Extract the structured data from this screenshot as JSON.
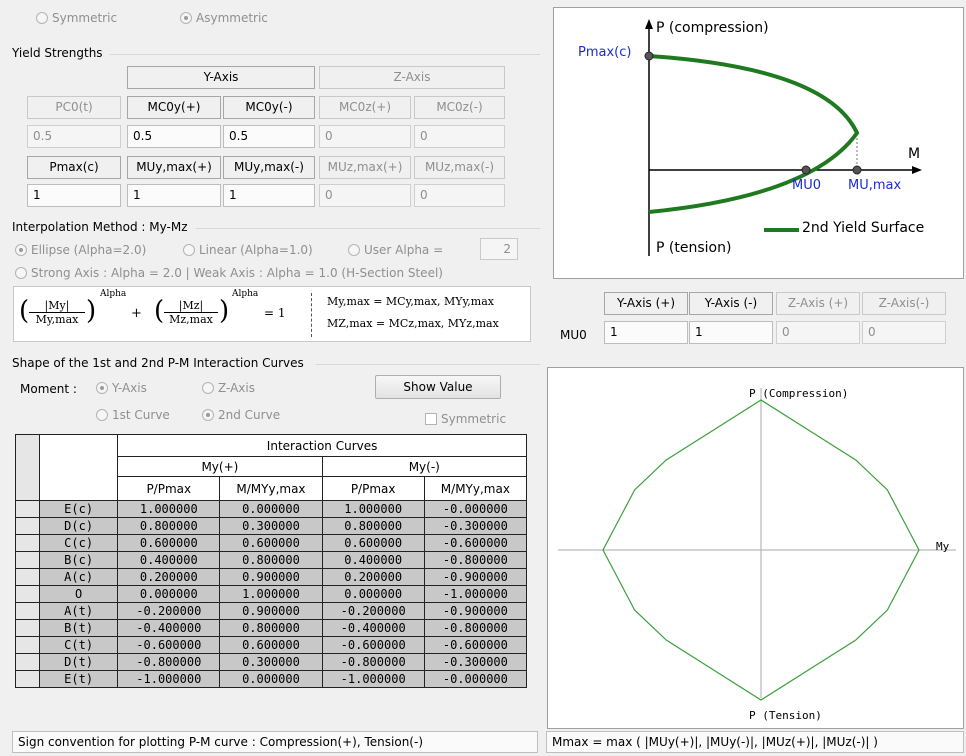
{
  "top": {
    "symmetric": "Symmetric",
    "asymmetric": "Asymmetric"
  },
  "yield": {
    "title": "Yield Strengths",
    "y_axis": "Y-Axis",
    "z_axis": "Z-Axis",
    "row1_headers": [
      "PC0(t)",
      "MC0y(+)",
      "MC0y(-)",
      "MC0z(+)",
      "MC0z(-)"
    ],
    "row1_values": [
      "0.5",
      "0.5",
      "0.5",
      "0",
      "0"
    ],
    "row2_headers": [
      "Pmax(c)",
      "MUy,max(+)",
      "MUy,max(-)",
      "MUz,max(+)",
      "MUz,max(-)"
    ],
    "row2_values": [
      "1",
      "1",
      "1",
      "0",
      "0"
    ]
  },
  "interp": {
    "title": "Interpolation Method : My-Mz",
    "ellipse": "Ellipse (Alpha=2.0)",
    "linear": "Linear (Alpha=1.0)",
    "user": "User Alpha =",
    "user_value": "2",
    "strong": "Strong Axis : Alpha = 2.0 | Weak Axis : Alpha = 1.0 (H-Section Steel)",
    "eq_my": "|My|",
    "eq_mymax": "My,max",
    "eq_mz": "|Mz|",
    "eq_mzmax": "Mz,max",
    "eq_alpha": "Alpha",
    "eq_plus": "+",
    "eq_equals": "= 1",
    "eq_def1": "My,max = MCy,max,  MYy,max",
    "eq_def2": "MZ,max = MCz,max,  MYz,max"
  },
  "diagram": {
    "p_comp": "P (compression)",
    "pmax": "Pmax(c)",
    "m": "M",
    "mu0": "MU0",
    "mumax": "MU,max",
    "legend": "2nd Yield Surface",
    "p_tension": "P (tension)",
    "color_curve": "#1f7a1f",
    "color_label": "#1d2bd6"
  },
  "mu0": {
    "row_label": "MU0",
    "headers": [
      "Y-Axis (+)",
      "Y-Axis (-)",
      "Z-Axis (+)",
      "Z-Axis(-)"
    ],
    "values": [
      "1",
      "1",
      "0",
      "0"
    ]
  },
  "shape": {
    "title": "Shape of the 1st and 2nd P-M Interaction Curves",
    "moment": "Moment :",
    "y_axis": "Y-Axis",
    "z_axis": "Z-Axis",
    "first_curve": "1st Curve",
    "second_curve": "2nd Curve",
    "show_value": "Show Value",
    "symmetric": "Symmetric"
  },
  "table": {
    "group_header": "Interaction Curves",
    "my_plus": "My(+)",
    "my_minus": "My(-)",
    "col_headers": [
      "P/Pmax",
      "M/MYy,max",
      "P/Pmax",
      "M/MYy,max"
    ],
    "rows": [
      {
        "label": "E(c)",
        "cells": [
          "1.000000",
          "0.000000",
          "1.000000",
          "-0.000000"
        ]
      },
      {
        "label": "D(c)",
        "cells": [
          "0.800000",
          "0.300000",
          "0.800000",
          "-0.300000"
        ]
      },
      {
        "label": "C(c)",
        "cells": [
          "0.600000",
          "0.600000",
          "0.600000",
          "-0.600000"
        ]
      },
      {
        "label": "B(c)",
        "cells": [
          "0.400000",
          "0.800000",
          "0.400000",
          "-0.800000"
        ]
      },
      {
        "label": "A(c)",
        "cells": [
          "0.200000",
          "0.900000",
          "0.200000",
          "-0.900000"
        ]
      },
      {
        "label": "O",
        "cells": [
          "0.000000",
          "1.000000",
          "0.000000",
          "-1.000000"
        ]
      },
      {
        "label": "A(t)",
        "cells": [
          "-0.200000",
          "0.900000",
          "-0.200000",
          "-0.900000"
        ]
      },
      {
        "label": "B(t)",
        "cells": [
          "-0.400000",
          "0.800000",
          "-0.400000",
          "-0.800000"
        ]
      },
      {
        "label": "C(t)",
        "cells": [
          "-0.600000",
          "0.600000",
          "-0.600000",
          "-0.600000"
        ]
      },
      {
        "label": "D(t)",
        "cells": [
          "-0.800000",
          "0.300000",
          "-0.800000",
          "-0.300000"
        ]
      },
      {
        "label": "E(t)",
        "cells": [
          "-1.000000",
          "0.000000",
          "-1.000000",
          "-0.000000"
        ]
      }
    ]
  },
  "plot": {
    "p_comp": "P (Compression)",
    "p_tension": "P (Tension)",
    "my": "My",
    "curve_color": "#3aa03a",
    "points": [
      {
        "p": 1.0,
        "m": 0.0
      },
      {
        "p": 0.8,
        "m": 0.3
      },
      {
        "p": 0.6,
        "m": 0.6
      },
      {
        "p": 0.4,
        "m": 0.8
      },
      {
        "p": 0.2,
        "m": 0.9
      },
      {
        "p": 0.0,
        "m": 1.0
      },
      {
        "p": -0.2,
        "m": 0.9
      },
      {
        "p": -0.4,
        "m": 0.8
      },
      {
        "p": -0.6,
        "m": 0.6
      },
      {
        "p": -0.8,
        "m": 0.3
      },
      {
        "p": -1.0,
        "m": 0.0
      },
      {
        "p": -0.8,
        "m": -0.3
      },
      {
        "p": -0.6,
        "m": -0.6
      },
      {
        "p": -0.4,
        "m": -0.8
      },
      {
        "p": -0.2,
        "m": -0.9
      },
      {
        "p": 0.0,
        "m": -1.0
      },
      {
        "p": 0.2,
        "m": -0.9
      },
      {
        "p": 0.4,
        "m": -0.8
      },
      {
        "p": 0.6,
        "m": -0.6
      },
      {
        "p": 0.8,
        "m": -0.3
      }
    ]
  },
  "status": {
    "left": "Sign convention for plotting P-M curve : Compression(+), Tension(-)",
    "right": "Mmax = max ( |MUy(+)|, |MUy(-)|, |MUz(+)|, |MUz(-)| )"
  }
}
